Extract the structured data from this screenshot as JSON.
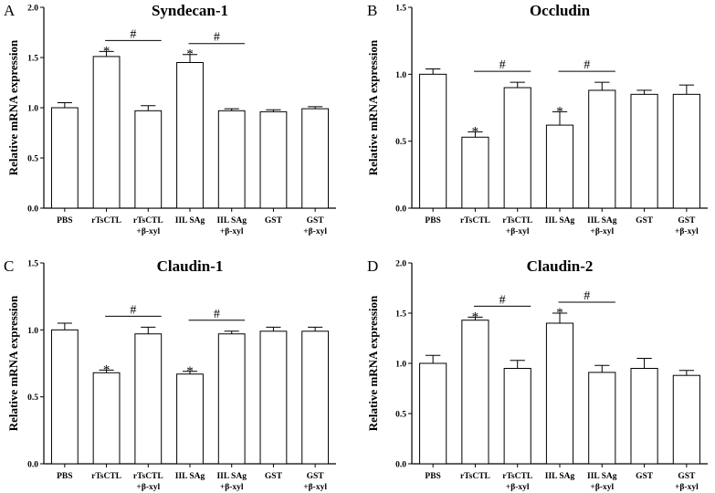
{
  "chart_data": [
    {
      "type": "bar",
      "panel": "A",
      "title": "Syndecan-1",
      "ylabel": "Relative mRNA expression",
      "ylim": [
        0,
        2.0
      ],
      "yticks": [
        "0.0",
        "0.5",
        "1.0",
        "1.5",
        "2.0"
      ],
      "categories": [
        {
          "line1": "PBS",
          "line2": ""
        },
        {
          "line1": "rTsCTL",
          "line2": ""
        },
        {
          "line1": "rTsCTL",
          "line2": "+β-xyl"
        },
        {
          "line1": "IIL SAg",
          "line2": ""
        },
        {
          "line1": "IIL SAg",
          "line2": "+β-xyl"
        },
        {
          "line1": "GST",
          "line2": ""
        },
        {
          "line1": "GST",
          "line2": "+β-xyl"
        }
      ],
      "values": [
        1.0,
        1.51,
        0.97,
        1.45,
        0.97,
        0.96,
        0.99
      ],
      "errors": [
        0.05,
        0.05,
        0.05,
        0.08,
        0.02,
        0.02,
        0.02
      ],
      "stars": [
        {
          "index": 1,
          "symbol": "*"
        },
        {
          "index": 3,
          "symbol": "*"
        }
      ],
      "brackets": [
        {
          "from": 1,
          "to": 2,
          "symbol": "#"
        },
        {
          "from": 3,
          "to": 4,
          "symbol": "#"
        }
      ]
    },
    {
      "type": "bar",
      "panel": "B",
      "title": "Occludin",
      "ylabel": "Relative mRNA expression",
      "ylim": [
        0,
        1.5
      ],
      "yticks": [
        "0.0",
        "0.5",
        "1.0",
        "1.5"
      ],
      "categories": [
        {
          "line1": "PBS",
          "line2": ""
        },
        {
          "line1": "rTsCTL",
          "line2": ""
        },
        {
          "line1": "rTsCTL",
          "line2": "+β-xyl"
        },
        {
          "line1": "IIL SAg",
          "line2": ""
        },
        {
          "line1": "IIL SAg",
          "line2": "+β-xyl"
        },
        {
          "line1": "GST",
          "line2": ""
        },
        {
          "line1": "GST",
          "line2": "+β-xyl"
        }
      ],
      "values": [
        1.0,
        0.53,
        0.9,
        0.62,
        0.88,
        0.85,
        0.85
      ],
      "errors": [
        0.04,
        0.04,
        0.04,
        0.1,
        0.06,
        0.03,
        0.07
      ],
      "stars": [
        {
          "index": 1,
          "symbol": "*"
        },
        {
          "index": 3,
          "symbol": "*"
        }
      ],
      "brackets": [
        {
          "from": 1,
          "to": 2,
          "symbol": "#"
        },
        {
          "from": 3,
          "to": 4,
          "symbol": "#"
        }
      ]
    },
    {
      "type": "bar",
      "panel": "C",
      "title": "Claudin-1",
      "ylabel": "Relative mRNA expression",
      "ylim": [
        0,
        1.5
      ],
      "yticks": [
        "0.0",
        "0.5",
        "1.0",
        "1.5"
      ],
      "categories": [
        {
          "line1": "PBS",
          "line2": ""
        },
        {
          "line1": "rTsCTL",
          "line2": ""
        },
        {
          "line1": "rTsCTL",
          "line2": "+β-xyl"
        },
        {
          "line1": "IIL SAg",
          "line2": ""
        },
        {
          "line1": "IIL SAg",
          "line2": "+β-xyl"
        },
        {
          "line1": "GST",
          "line2": ""
        },
        {
          "line1": "GST",
          "line2": "+β-xyl"
        }
      ],
      "values": [
        1.0,
        0.68,
        0.97,
        0.67,
        0.97,
        0.99,
        0.99
      ],
      "errors": [
        0.05,
        0.02,
        0.05,
        0.02,
        0.02,
        0.03,
        0.03
      ],
      "stars": [
        {
          "index": 1,
          "symbol": "*"
        },
        {
          "index": 3,
          "symbol": "*"
        }
      ],
      "brackets": [
        {
          "from": 1,
          "to": 2,
          "symbol": "#"
        },
        {
          "from": 3,
          "to": 4,
          "symbol": "#"
        }
      ]
    },
    {
      "type": "bar",
      "panel": "D",
      "title": "Claudin-2",
      "ylabel": "Relative mRNA expression",
      "ylim": [
        0,
        2.0
      ],
      "yticks": [
        "0.0",
        "0.5",
        "1.0",
        "1.5",
        "2.0"
      ],
      "categories": [
        {
          "line1": "PBS",
          "line2": ""
        },
        {
          "line1": "rTsCTL",
          "line2": ""
        },
        {
          "line1": "rTsCTL",
          "line2": "+β-xyl"
        },
        {
          "line1": "IIL SAg",
          "line2": ""
        },
        {
          "line1": "IIL SAg",
          "line2": "+β-xyl"
        },
        {
          "line1": "GST",
          "line2": ""
        },
        {
          "line1": "GST",
          "line2": "+β-xyl"
        }
      ],
      "values": [
        1.0,
        1.43,
        0.95,
        1.4,
        0.91,
        0.95,
        0.88
      ],
      "errors": [
        0.08,
        0.03,
        0.08,
        0.1,
        0.07,
        0.1,
        0.05
      ],
      "stars": [
        {
          "index": 1,
          "symbol": "*"
        },
        {
          "index": 3,
          "symbol": "*"
        }
      ],
      "brackets": [
        {
          "from": 1,
          "to": 2,
          "symbol": "#"
        },
        {
          "from": 3,
          "to": 4,
          "symbol": "#"
        }
      ]
    }
  ]
}
